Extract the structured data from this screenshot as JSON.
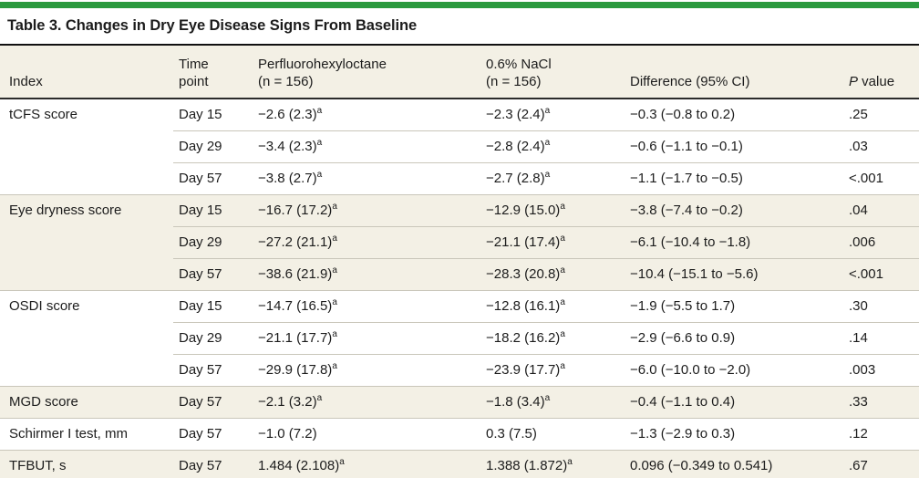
{
  "title": "Table 3. Changes in Dry Eye Disease Signs From Baseline",
  "colors": {
    "accent_green": "#2c9a3f",
    "header_background": "#f3f0e5",
    "shaded_group_background": "#f3f0e5",
    "dark_rule": "#111111",
    "light_rule": "#c9c6ba",
    "text": "#1c1c1c"
  },
  "table": {
    "headers": {
      "index": "Index",
      "time_line1": "Time",
      "time_line2": "point",
      "pfho_line1": "Perfluorohexyloctane",
      "pfho_line2": "(n = 156)",
      "nacl_line1": "0.6% NaCl",
      "nacl_line2": "(n = 156)",
      "difference": "Difference (95% CI)",
      "p_italic": "P",
      "p_rest": " value"
    },
    "footnote_marker": "a",
    "groups": [
      {
        "index": "tCFS score",
        "shaded": false,
        "rows": [
          {
            "time": "Day 15",
            "pfho": "−2.6 (2.3)",
            "pfho_sup": "a",
            "nacl": "−2.3 (2.4)",
            "nacl_sup": "a",
            "diff": "−0.3 (−0.8 to 0.2)",
            "p": ".25"
          },
          {
            "time": "Day 29",
            "pfho": "−3.4 (2.3)",
            "pfho_sup": "a",
            "nacl": "−2.8 (2.4)",
            "nacl_sup": "a",
            "diff": "−0.6 (−1.1 to −0.1)",
            "p": ".03"
          },
          {
            "time": "Day 57",
            "pfho": "−3.8 (2.7)",
            "pfho_sup": "a",
            "nacl": "−2.7 (2.8)",
            "nacl_sup": "a",
            "diff": "−1.1 (−1.7 to −0.5)",
            "p": "<.001"
          }
        ]
      },
      {
        "index": "Eye dryness score",
        "shaded": true,
        "rows": [
          {
            "time": "Day 15",
            "pfho": "−16.7 (17.2)",
            "pfho_sup": "a",
            "nacl": "−12.9 (15.0)",
            "nacl_sup": "a",
            "diff": "−3.8 (−7.4 to −0.2)",
            "p": ".04"
          },
          {
            "time": "Day 29",
            "pfho": "−27.2 (21.1)",
            "pfho_sup": "a",
            "nacl": "−21.1 (17.4)",
            "nacl_sup": "a",
            "diff": "−6.1 (−10.4 to −1.8)",
            "p": ".006"
          },
          {
            "time": "Day 57",
            "pfho": "−38.6 (21.9)",
            "pfho_sup": "a",
            "nacl": "−28.3 (20.8)",
            "nacl_sup": "a",
            "diff": "−10.4 (−15.1 to −5.6)",
            "p": "<.001"
          }
        ]
      },
      {
        "index": "OSDI score",
        "shaded": false,
        "rows": [
          {
            "time": "Day 15",
            "pfho": "−14.7 (16.5)",
            "pfho_sup": "a",
            "nacl": "−12.8 (16.1)",
            "nacl_sup": "a",
            "diff": "−1.9 (−5.5 to 1.7)",
            "p": ".30"
          },
          {
            "time": "Day 29",
            "pfho": "−21.1 (17.7)",
            "pfho_sup": "a",
            "nacl": "−18.2 (16.2)",
            "nacl_sup": "a",
            "diff": "−2.9 (−6.6 to 0.9)",
            "p": ".14"
          },
          {
            "time": "Day 57",
            "pfho": "−29.9 (17.8)",
            "pfho_sup": "a",
            "nacl": "−23.9 (17.7)",
            "nacl_sup": "a",
            "diff": "−6.0 (−10.0 to −2.0)",
            "p": ".003"
          }
        ]
      },
      {
        "index": "MGD score",
        "shaded": true,
        "rows": [
          {
            "time": "Day 57",
            "pfho": "−2.1 (3.2)",
            "pfho_sup": "a",
            "nacl": "−1.8 (3.4)",
            "nacl_sup": "a",
            "diff": "−0.4 (−1.1 to 0.4)",
            "p": ".33"
          }
        ]
      },
      {
        "index": "Schirmer I test, mm",
        "shaded": false,
        "rows": [
          {
            "time": "Day 57",
            "pfho": "−1.0 (7.2)",
            "nacl": "0.3 (7.5)",
            "diff": "−1.3 (−2.9 to 0.3)",
            "p": ".12"
          }
        ]
      },
      {
        "index": "TFBUT, s",
        "shaded": true,
        "rows": [
          {
            "time": "Day 57",
            "pfho": "1.484 (2.108)",
            "pfho_sup": "a",
            "nacl": "1.388 (1.872)",
            "nacl_sup": "a",
            "diff": "0.096 (−0.349 to 0.541)",
            "p": ".67"
          }
        ]
      }
    ]
  }
}
